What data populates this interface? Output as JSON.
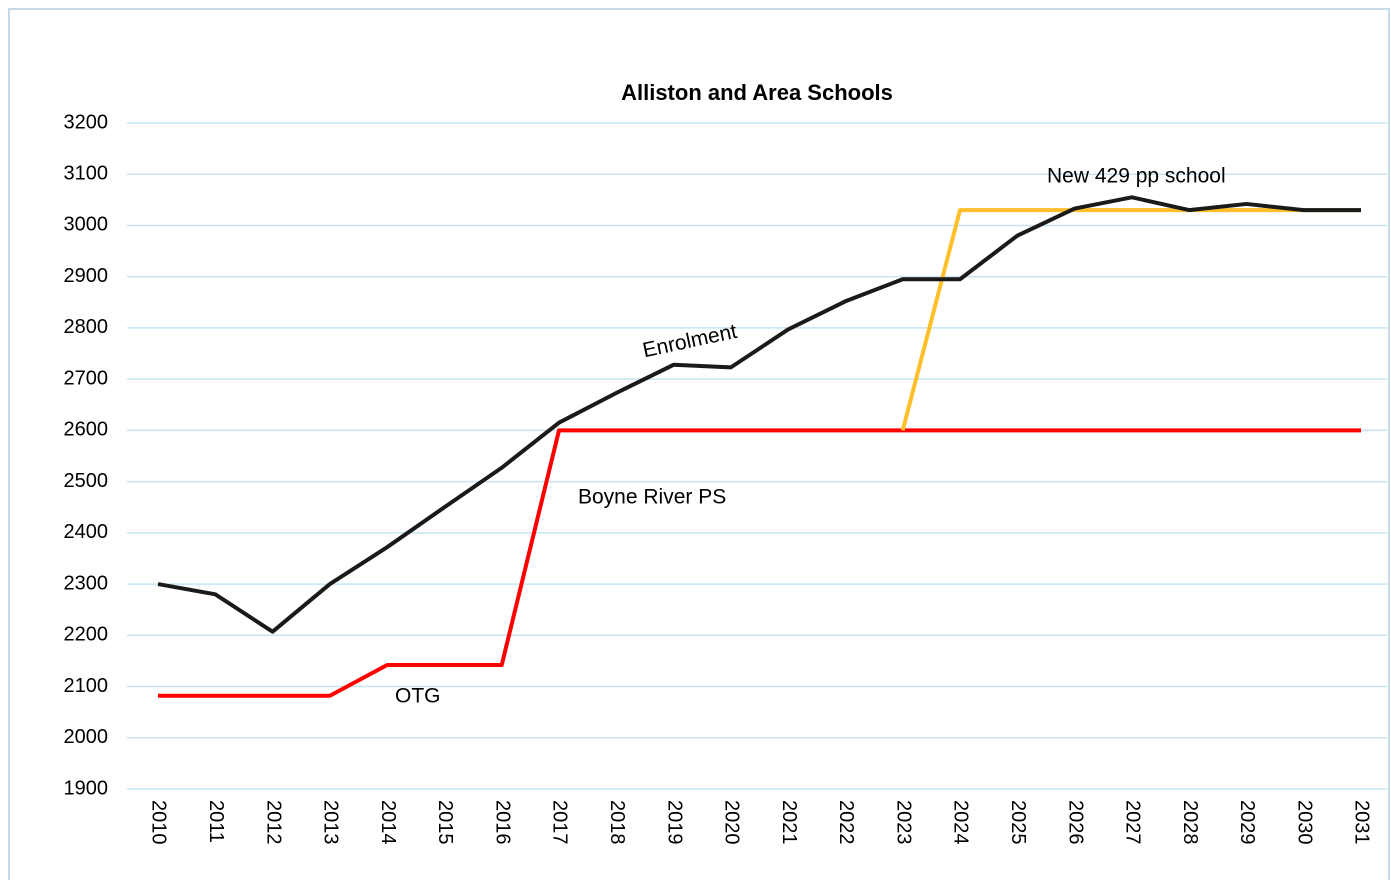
{
  "chart_data": {
    "type": "line",
    "title": "Alliston and Area Schools",
    "categories": [
      "2010",
      "2011",
      "2012",
      "2013",
      "2014",
      "2015",
      "2016",
      "2017",
      "2018",
      "2019",
      "2020",
      "2021",
      "2022",
      "2023",
      "2024",
      "2025",
      "2026",
      "2027",
      "2028",
      "2029",
      "2030",
      "2031"
    ],
    "series": [
      {
        "name": "Enrolment",
        "color": "#1a1a1a",
        "values": [
          2300,
          2280,
          2207,
          2300,
          2372,
          2450,
          2527,
          2615,
          2673,
          2728,
          2723,
          2797,
          2852,
          2895,
          2895,
          2980,
          3033,
          3055,
          3030,
          3042,
          3030,
          3030
        ]
      },
      {
        "name": "OTG",
        "color": "#ff0000",
        "values": [
          2082,
          2082,
          2082,
          2082,
          2142,
          2142,
          2142,
          2600,
          2600,
          2600,
          2600,
          2600,
          2600,
          2600,
          2600,
          2600,
          2600,
          2600,
          2600,
          2600,
          2600,
          2600
        ]
      },
      {
        "name": "New 429 pp school",
        "color": "#ffbf2a",
        "values": [
          null,
          null,
          null,
          null,
          null,
          null,
          null,
          null,
          null,
          null,
          null,
          null,
          null,
          2600,
          3030,
          3030,
          3030,
          3030,
          3030,
          3030,
          3030,
          3030
        ]
      }
    ],
    "annotations": [
      "Boyne River PS"
    ],
    "ylim": [
      1900,
      3200
    ],
    "yticks": [
      1900,
      2000,
      2100,
      2200,
      2300,
      2400,
      2500,
      2600,
      2700,
      2800,
      2900,
      3000,
      3100,
      3200
    ],
    "grid": true
  }
}
